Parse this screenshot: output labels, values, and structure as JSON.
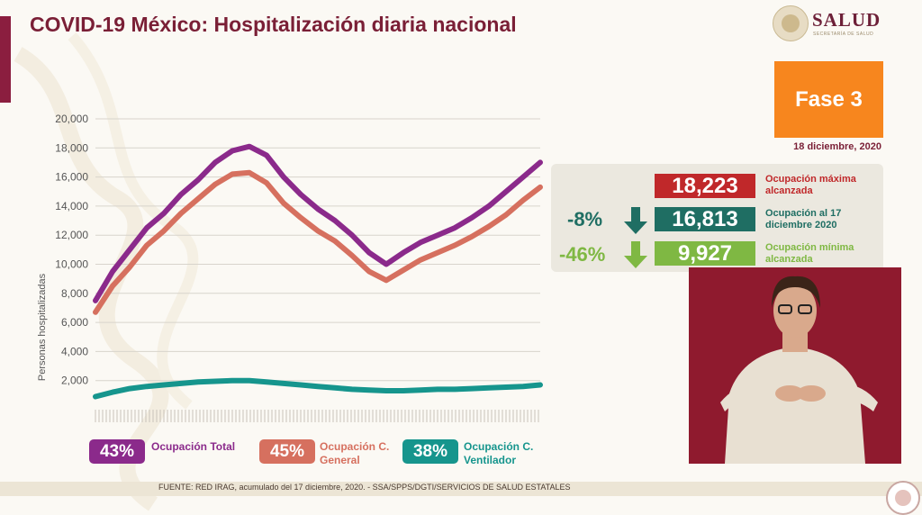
{
  "header": {
    "title": "COVID-19 México: Hospitalización diaria nacional",
    "logo_name": "SALUD",
    "logo_sub": "SECRETARÍA DE SALUD"
  },
  "phase": {
    "label": "Fase 3",
    "date": "18 diciembre, 2020"
  },
  "stats": {
    "max": {
      "value": "18,223",
      "label": "Ocupación máxima alcanzada",
      "color": "#c0282a"
    },
    "current": {
      "value": "16,813",
      "label": "Ocupación al 17 diciembre 2020",
      "color": "#1f6e63",
      "pct": "-8%"
    },
    "min": {
      "value": "9,927",
      "label": "Ocupación mínima alcanzada",
      "color": "#7fb843",
      "pct": "-46%"
    }
  },
  "legend": [
    {
      "pct": "43%",
      "label": "Ocupación Total",
      "color": "#8b2a8b"
    },
    {
      "pct": "45%",
      "label": "Ocupación C. General",
      "color": "#d6705f"
    },
    {
      "pct": "38%",
      "label": "Ocupación C. Ventilador",
      "color": "#16958d"
    }
  ],
  "footer": {
    "source": "FUENTE: RED IRAG, acumulado del 17 diciembre, 2020. -  SSA/SPPS/DGTI/SERVICIOS DE SALUD ESTATALES"
  },
  "chart_data": {
    "type": "line",
    "ylabel": "Personas hospitalizadas",
    "ylim": [
      0,
      20000
    ],
    "yticks": [
      "20,000",
      "18,000",
      "16,000",
      "14,000",
      "12,000",
      "10,000",
      "8,000",
      "6,000",
      "4,000",
      "2,000"
    ],
    "ytick_values": [
      20000,
      18000,
      16000,
      14000,
      12000,
      10000,
      8000,
      6000,
      4000,
      2000
    ],
    "grid": true,
    "x_days": [
      0,
      10,
      20,
      30,
      40,
      50,
      60,
      70,
      80,
      90,
      100,
      110,
      120,
      130,
      140,
      150,
      160,
      170,
      180,
      190,
      200,
      210,
      220,
      230,
      240,
      250,
      260
    ],
    "series": [
      {
        "name": "Ocupación Total",
        "color": "#8b2a8b",
        "values": [
          7500,
          9500,
          11000,
          12500,
          13500,
          14800,
          15800,
          17000,
          17800,
          18100,
          17500,
          16000,
          14800,
          13800,
          13000,
          12000,
          10800,
          10000,
          10800,
          11500,
          12000,
          12500,
          13200,
          14000,
          15000,
          16000,
          17000
        ]
      },
      {
        "name": "Ocupación C. General",
        "color": "#d6705f",
        "values": [
          6700,
          8500,
          9800,
          11300,
          12300,
          13500,
          14500,
          15500,
          16200,
          16300,
          15600,
          14200,
          13200,
          12300,
          11600,
          10600,
          9500,
          8900,
          9600,
          10300,
          10800,
          11300,
          11900,
          12600,
          13400,
          14400,
          15300
        ]
      },
      {
        "name": "Ocupación C. Ventilador",
        "color": "#16958d",
        "values": [
          900,
          1200,
          1450,
          1600,
          1700,
          1800,
          1900,
          1950,
          2000,
          2000,
          1900,
          1800,
          1700,
          1600,
          1500,
          1400,
          1350,
          1300,
          1300,
          1350,
          1400,
          1400,
          1450,
          1500,
          1550,
          1600,
          1700
        ]
      }
    ]
  }
}
